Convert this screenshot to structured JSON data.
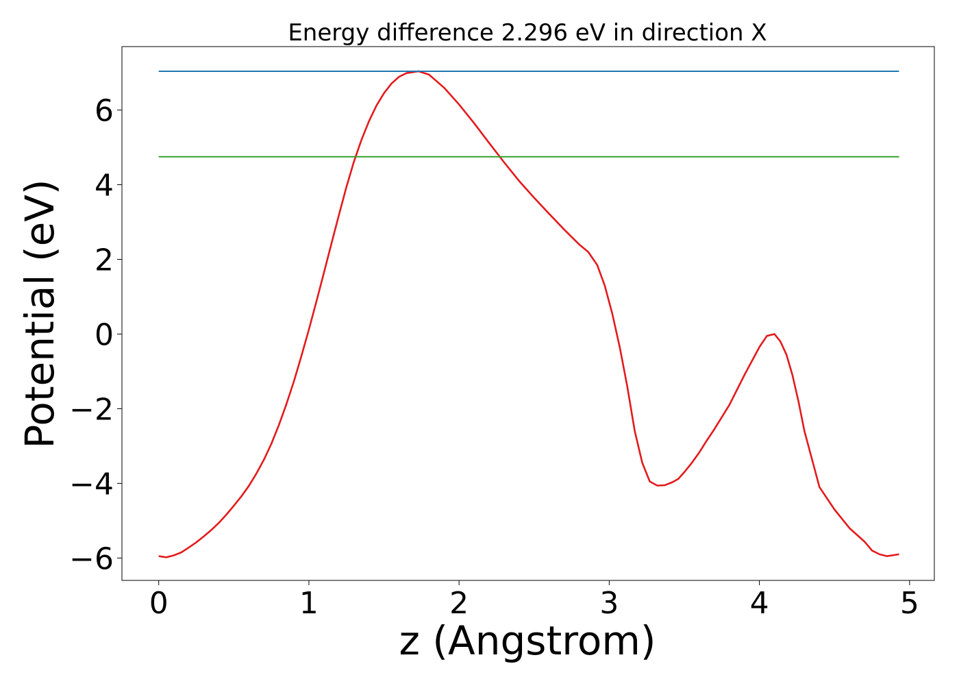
{
  "chart_data": {
    "type": "line",
    "title": "Energy difference 2.296 eV in direction X",
    "xlabel": "z (Angstrom)",
    "ylabel": "Potential (eV)",
    "xlim": [
      -0.245,
      5.165
    ],
    "ylim": [
      -6.6,
      7.7
    ],
    "xticks": [
      0,
      1,
      2,
      3,
      4,
      5
    ],
    "xtick_labels": [
      "0",
      "1",
      "2",
      "3",
      "4",
      "5"
    ],
    "yticks": [
      -6,
      -4,
      -2,
      0,
      2,
      4,
      6
    ],
    "ytick_labels": [
      "−6",
      "−4",
      "−2",
      "0",
      "2",
      "4",
      "6"
    ],
    "grid": false,
    "legend": "none",
    "series": [
      {
        "color": "#e31a1c",
        "x": [
          0.0,
          0.05,
          0.1,
          0.15,
          0.2,
          0.25,
          0.3,
          0.35,
          0.4,
          0.45,
          0.5,
          0.55,
          0.6,
          0.65,
          0.7,
          0.75,
          0.8,
          0.85,
          0.9,
          0.95,
          1.0,
          1.05,
          1.1,
          1.15,
          1.2,
          1.25,
          1.3,
          1.35,
          1.4,
          1.45,
          1.5,
          1.55,
          1.6,
          1.65,
          1.7,
          1.73,
          1.8,
          1.9,
          2.0,
          2.1,
          2.2,
          2.3,
          2.4,
          2.5,
          2.6,
          2.7,
          2.8,
          2.86,
          2.92,
          2.97,
          3.02,
          3.07,
          3.12,
          3.17,
          3.22,
          3.27,
          3.32,
          3.37,
          3.42,
          3.46,
          3.5,
          3.55,
          3.6,
          3.65,
          3.7,
          3.8,
          3.9,
          4.0,
          4.05,
          4.1,
          4.14,
          4.18,
          4.22,
          4.26,
          4.3,
          4.35,
          4.4,
          4.5,
          4.6,
          4.7,
          4.75,
          4.8,
          4.85,
          4.93
        ],
        "y": [
          -5.95,
          -5.98,
          -5.93,
          -5.85,
          -5.72,
          -5.58,
          -5.42,
          -5.25,
          -5.06,
          -4.84,
          -4.6,
          -4.35,
          -4.07,
          -3.74,
          -3.37,
          -2.94,
          -2.44,
          -1.88,
          -1.27,
          -0.59,
          0.12,
          0.87,
          1.64,
          2.42,
          3.19,
          3.94,
          4.62,
          5.2,
          5.7,
          6.12,
          6.45,
          6.71,
          6.89,
          6.99,
          7.02,
          7.04,
          6.95,
          6.6,
          6.15,
          5.65,
          5.12,
          4.6,
          4.1,
          3.65,
          3.22,
          2.8,
          2.4,
          2.2,
          1.85,
          1.3,
          0.55,
          -0.35,
          -1.4,
          -2.6,
          -3.45,
          -3.95,
          -4.06,
          -4.05,
          -3.97,
          -3.88,
          -3.7,
          -3.45,
          -3.17,
          -2.85,
          -2.55,
          -1.9,
          -1.1,
          -0.35,
          -0.05,
          0.0,
          -0.2,
          -0.55,
          -1.1,
          -1.8,
          -2.6,
          -3.35,
          -4.1,
          -4.7,
          -5.2,
          -5.56,
          -5.8,
          -5.9,
          -5.95,
          -5.9
        ]
      },
      {
        "color": "#1f77b4",
        "x": [
          0.0,
          4.93
        ],
        "y": [
          7.04,
          7.04
        ]
      },
      {
        "color": "#33a02c",
        "x": [
          0.0,
          4.93
        ],
        "y": [
          4.75,
          4.75
        ]
      }
    ]
  }
}
